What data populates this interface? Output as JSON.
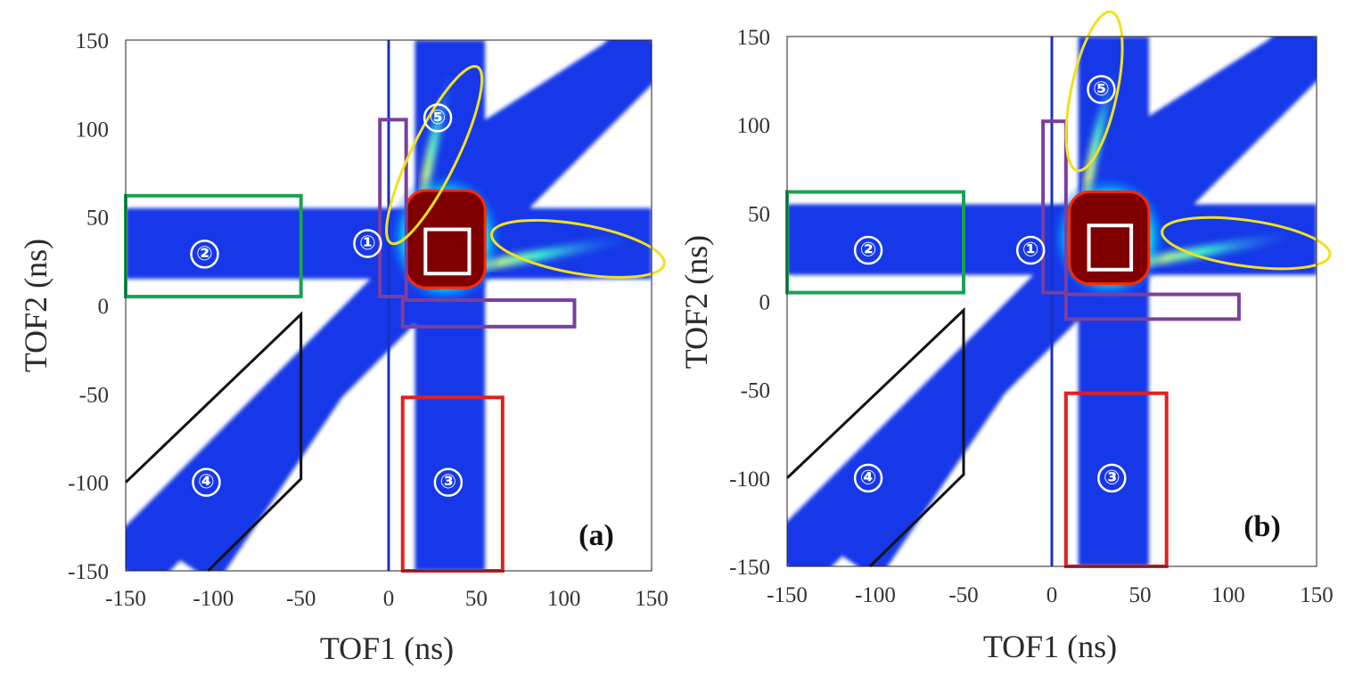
{
  "chart_data": [
    {
      "type": "heatmap",
      "panel_label": "(a)",
      "xlabel": "TOF1 (ns)",
      "ylabel": "TOF2 (ns)",
      "xlim": [
        -150,
        150
      ],
      "ylim": [
        -150,
        150
      ],
      "xticks": [
        -150,
        -100,
        -50,
        0,
        50,
        100,
        150
      ],
      "yticks": [
        150,
        100,
        50,
        0,
        -50,
        -100,
        -150
      ],
      "xtick_labels": [
        "-150",
        "-100",
        "-50",
        "0",
        "50",
        "100",
        "150"
      ],
      "ytick_labels": [
        "150",
        "100",
        "50",
        "0",
        "-50",
        "-100",
        "-150"
      ],
      "colormap": "jet",
      "background": "#ffffff",
      "coincidence_peak": {
        "x": [
          10,
          55
        ],
        "y": [
          10,
          65
        ]
      },
      "bands": [
        {
          "orientation": "horizontal",
          "y": [
            15,
            55
          ]
        },
        {
          "orientation": "vertical",
          "x": [
            15,
            55
          ]
        },
        {
          "orientation": "diagonal",
          "x": [
            -150,
            150
          ],
          "y": [
            -150,
            150
          ],
          "half_width": 18
        },
        {
          "orientation": "diagonal",
          "x": [
            40,
            150
          ],
          "y": [
            80,
            150
          ],
          "half_width": 13
        },
        {
          "orientation": "diagonal",
          "x": [
            -110,
            -15
          ],
          "y": [
            -150,
            -10
          ],
          "half_width": 14
        }
      ],
      "regions": [
        {
          "label": "①",
          "shape": "rect",
          "color": "#7b3f9e",
          "x": [
            -5,
            10
          ],
          "y": [
            5,
            105
          ]
        },
        {
          "label": "①",
          "shape": "rect",
          "color": "#7b3f9e",
          "x": [
            8,
            106
          ],
          "y": [
            -12,
            3
          ]
        },
        {
          "label": "②",
          "shape": "rect",
          "color": "#1aa156",
          "x": [
            -150,
            -50
          ],
          "y": [
            5,
            62
          ]
        },
        {
          "label": "③",
          "shape": "rect",
          "color": "#e02020",
          "x": [
            8,
            65
          ],
          "y": [
            -150,
            -52
          ]
        },
        {
          "label": "④",
          "shape": "polygon",
          "color": "#111111",
          "points": [
            [
              -150,
              -100
            ],
            [
              -50,
              -5
            ],
            [
              -50,
              -98
            ],
            [
              -103,
              -150
            ]
          ]
        },
        {
          "label": "⑤",
          "shape": "ellipse",
          "color": "#f0e020",
          "center": [
            26,
            85
          ],
          "radii": [
            13,
            56
          ],
          "rotation_deg": -26
        },
        {
          "label": "⑤",
          "shape": "ellipse",
          "color": "#f0e020",
          "center": [
            108,
            32
          ],
          "radii": [
            50,
            14
          ],
          "rotation_deg": -10
        },
        {
          "label": "",
          "shape": "rect",
          "color": "#ffffff",
          "x": [
            21,
            46
          ],
          "y": [
            18,
            43
          ]
        }
      ],
      "region_label_positions": [
        {
          "label": "①",
          "x": -12,
          "y": 35
        },
        {
          "label": "②",
          "x": -105,
          "y": 29
        },
        {
          "label": "③",
          "x": 34,
          "y": -100
        },
        {
          "label": "④",
          "x": -104,
          "y": -100
        },
        {
          "label": "⑤",
          "x": 28,
          "y": 106
        }
      ]
    },
    {
      "type": "heatmap",
      "panel_label": "(b)",
      "xlabel": "TOF1 (ns)",
      "ylabel": "TOF2 (ns)",
      "xlim": [
        -150,
        150
      ],
      "ylim": [
        -150,
        150
      ],
      "xticks": [
        -150,
        -100,
        -50,
        0,
        50,
        100,
        150
      ],
      "yticks": [
        150,
        100,
        50,
        0,
        -50,
        -100,
        -150
      ],
      "xtick_labels": [
        "-150",
        "-100",
        "-50",
        "0",
        "50",
        "100",
        "150"
      ],
      "ytick_labels": [
        "150",
        "100",
        "50",
        "0",
        "-50",
        "-100",
        "-150"
      ],
      "colormap": "jet",
      "background": "#ffffff",
      "coincidence_peak": {
        "x": [
          10,
          55
        ],
        "y": [
          10,
          62
        ]
      },
      "bands": [
        {
          "orientation": "horizontal",
          "y": [
            15,
            55
          ]
        },
        {
          "orientation": "vertical",
          "x": [
            15,
            55
          ]
        },
        {
          "orientation": "diagonal",
          "x": [
            -150,
            150
          ],
          "y": [
            -150,
            150
          ],
          "half_width": 18
        },
        {
          "orientation": "diagonal",
          "x": [
            40,
            150
          ],
          "y": [
            80,
            150
          ],
          "half_width": 13
        },
        {
          "orientation": "diagonal",
          "x": [
            -110,
            -15
          ],
          "y": [
            -150,
            -10
          ],
          "half_width": 14
        }
      ],
      "regions": [
        {
          "label": "①",
          "shape": "rect",
          "color": "#7b3f9e",
          "x": [
            -5,
            8
          ],
          "y": [
            5,
            102
          ]
        },
        {
          "label": "①",
          "shape": "rect",
          "color": "#7b3f9e",
          "x": [
            8,
            106
          ],
          "y": [
            -10,
            4
          ]
        },
        {
          "label": "②",
          "shape": "rect",
          "color": "#1aa156",
          "x": [
            -150,
            -50
          ],
          "y": [
            5,
            62
          ]
        },
        {
          "label": "③",
          "shape": "rect",
          "color": "#e02020",
          "x": [
            8,
            65
          ],
          "y": [
            -150,
            -52
          ]
        },
        {
          "label": "④",
          "shape": "polygon",
          "color": "#111111",
          "points": [
            [
              -150,
              -100
            ],
            [
              -50,
              -5
            ],
            [
              -50,
              -98
            ],
            [
              -103,
              -150
            ]
          ]
        },
        {
          "label": "⑤",
          "shape": "ellipse",
          "color": "#f0e020",
          "center": [
            24,
            119
          ],
          "radii": [
            13,
            46
          ],
          "rotation_deg": -12
        },
        {
          "label": "⑤",
          "shape": "ellipse",
          "color": "#f0e020",
          "center": [
            110,
            33
          ],
          "radii": [
            48,
            13
          ],
          "rotation_deg": -8
        },
        {
          "label": "",
          "shape": "rect",
          "color": "#ffffff",
          "x": [
            21,
            45
          ],
          "y": [
            18,
            43
          ]
        }
      ],
      "region_label_positions": [
        {
          "label": "①",
          "x": -12,
          "y": 29
        },
        {
          "label": "②",
          "x": -104,
          "y": 29
        },
        {
          "label": "③",
          "x": 34,
          "y": -100
        },
        {
          "label": "④",
          "x": -104,
          "y": -100
        },
        {
          "label": "⑤",
          "x": 28,
          "y": 120
        }
      ]
    }
  ]
}
